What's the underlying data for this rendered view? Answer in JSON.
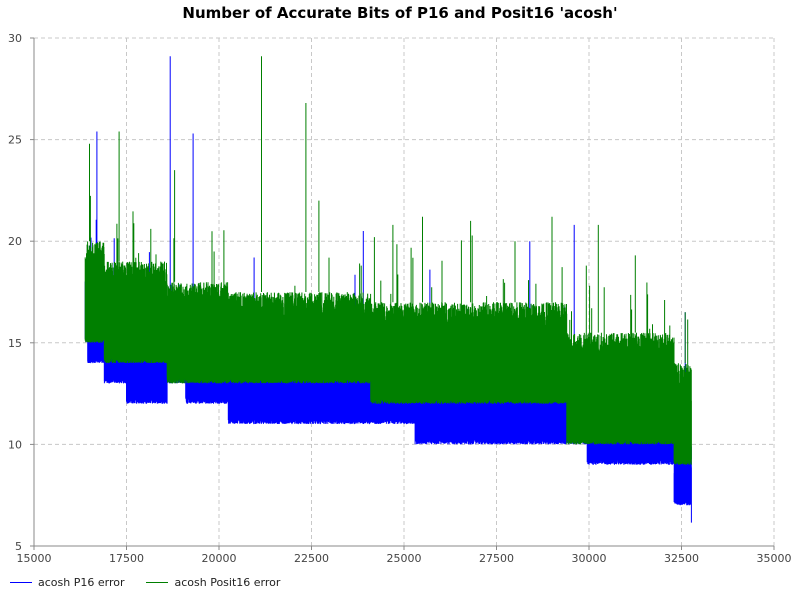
{
  "chart_data": {
    "type": "line",
    "title": "Number of Accurate Bits of P16 and Posit16 'acosh'",
    "xlabel": "",
    "ylabel": "",
    "xlim": [
      15000,
      35000
    ],
    "ylim": [
      5,
      30
    ],
    "x_ticks": [
      15000,
      17500,
      20000,
      22500,
      25000,
      27500,
      30000,
      32500,
      35000
    ],
    "y_ticks": [
      5,
      10,
      15,
      20,
      25,
      30
    ],
    "grid": true,
    "legend_position": "bottom-left",
    "series": [
      {
        "name": "acosh P16 error",
        "color": "#0000ff",
        "floor_steps": [
          [
            16384,
            15
          ],
          [
            16450,
            14
          ],
          [
            16900,
            13
          ],
          [
            17500,
            12
          ],
          [
            18600,
            13
          ],
          [
            19100,
            12
          ],
          [
            20250,
            11
          ],
          [
            24100,
            11
          ],
          [
            25300,
            10
          ],
          [
            29400,
            10
          ],
          [
            29950,
            9
          ],
          [
            32300,
            7
          ],
          [
            32768,
            6
          ]
        ],
        "typical_top_steps": [
          [
            16384,
            19
          ],
          [
            16900,
            17
          ],
          [
            17500,
            16
          ],
          [
            18600,
            15
          ],
          [
            20250,
            14.5
          ],
          [
            25300,
            13.5
          ],
          [
            29950,
            12
          ],
          [
            32300,
            10
          ],
          [
            32768,
            9
          ]
        ],
        "peaks": [
          [
            16700,
            25.4
          ],
          [
            18680,
            29.1
          ],
          [
            19300,
            25.3
          ],
          [
            20950,
            19.2
          ],
          [
            23900,
            20.5
          ],
          [
            25700,
            18.6
          ],
          [
            28400,
            20.0
          ],
          [
            29600,
            20.8
          ],
          [
            32600,
            16.5
          ]
        ],
        "x_range": [
          16384,
          32768
        ]
      },
      {
        "name": "acosh Posit16 error",
        "color": "#007f00",
        "floor_steps": [
          [
            16384,
            15
          ],
          [
            16900,
            14
          ],
          [
            18600,
            13
          ],
          [
            24100,
            12
          ],
          [
            29400,
            10
          ],
          [
            32300,
            9
          ],
          [
            32768,
            9
          ]
        ],
        "typical_top_steps": [
          [
            16384,
            20
          ],
          [
            16900,
            19
          ],
          [
            18600,
            18
          ],
          [
            20250,
            17.5
          ],
          [
            24100,
            17
          ],
          [
            29400,
            15.5
          ],
          [
            32300,
            14
          ],
          [
            32768,
            13
          ]
        ],
        "peaks": [
          [
            16500,
            24.8
          ],
          [
            17300,
            25.4
          ],
          [
            18800,
            23.5
          ],
          [
            21150,
            29.1
          ],
          [
            22350,
            26.8
          ],
          [
            22700,
            22.0
          ],
          [
            24700,
            20.8
          ],
          [
            25500,
            21.2
          ],
          [
            26800,
            21.0
          ],
          [
            28000,
            20.0
          ],
          [
            29000,
            21.2
          ],
          [
            30250,
            20.8
          ],
          [
            31250,
            19.3
          ],
          [
            32600,
            16.5
          ]
        ],
        "x_range": [
          16384,
          32768
        ]
      }
    ]
  }
}
